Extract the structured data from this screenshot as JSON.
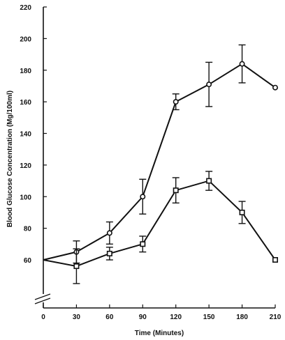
{
  "chart_data": {
    "type": "line",
    "title": "",
    "xlabel": "Time (Minutes)",
    "ylabel": "Blood Glucose Concentration (Mg/100ml)",
    "xlim": [
      0,
      210
    ],
    "ylim": [
      60,
      220
    ],
    "axis_break": true,
    "x_ticks": [
      "0",
      "30",
      "60",
      "90",
      "120",
      "150",
      "180",
      "210"
    ],
    "y_ticks": [
      "60",
      "80",
      "100",
      "120",
      "140",
      "160",
      "180",
      "200",
      "220"
    ],
    "grid": false,
    "legend": "none",
    "series": [
      {
        "marker": "circle",
        "color": "#111111",
        "x": [
          0,
          30,
          60,
          90,
          120,
          150,
          180,
          210
        ],
        "y": [
          60,
          65,
          77,
          100,
          160,
          171,
          184,
          169
        ],
        "y_err": [
          0,
          7,
          7,
          11,
          5,
          14,
          12,
          0
        ]
      },
      {
        "marker": "square",
        "color": "#111111",
        "x": [
          0,
          30,
          60,
          90,
          120,
          150,
          180,
          210
        ],
        "y": [
          60,
          56,
          64,
          70,
          104,
          110,
          90,
          60
        ],
        "y_err": [
          0,
          11,
          4,
          5,
          8,
          6,
          7,
          0
        ]
      }
    ]
  }
}
